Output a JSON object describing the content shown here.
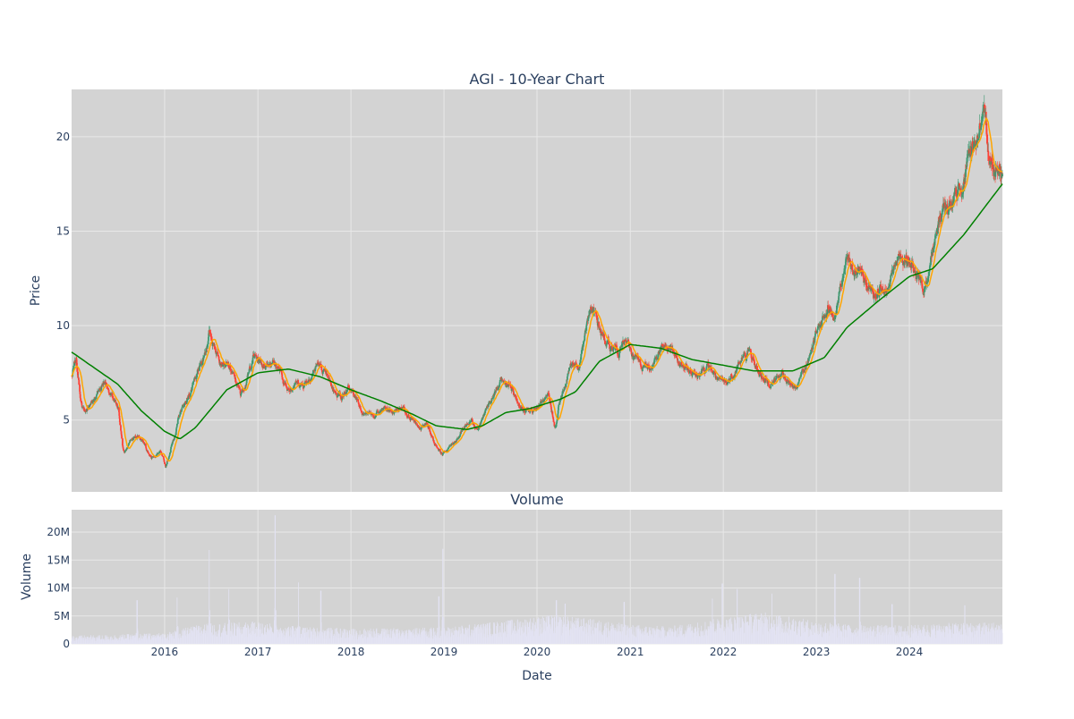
{
  "chart_data": [
    {
      "type": "candlestick",
      "title": "AGI - 10-Year Chart",
      "xlabel": "",
      "ylabel": "Price",
      "x_range": [
        "2015-01-01",
        "2024-12-31"
      ],
      "ylim": [
        1.2,
        22.5
      ],
      "y_ticks": [
        5,
        10,
        15,
        20
      ],
      "grid": true,
      "legend": "none",
      "price_anchors": [
        [
          "2015-01-01",
          7.3
        ],
        [
          "2015-01-20",
          8.2
        ],
        [
          "2015-02-05",
          6.1
        ],
        [
          "2015-02-20",
          5.4
        ],
        [
          "2015-03-15",
          5.8
        ],
        [
          "2015-04-15",
          6.5
        ],
        [
          "2015-05-10",
          7.1
        ],
        [
          "2015-06-10",
          6.2
        ],
        [
          "2015-07-05",
          5.4
        ],
        [
          "2015-07-25",
          3.2
        ],
        [
          "2015-08-20",
          3.9
        ],
        [
          "2015-09-20",
          4.2
        ],
        [
          "2015-10-15",
          3.8
        ],
        [
          "2015-11-10",
          3.0
        ],
        [
          "2015-12-15",
          3.3
        ],
        [
          "2016-01-05",
          2.5
        ],
        [
          "2016-02-05",
          4.0
        ],
        [
          "2016-03-05",
          5.5
        ],
        [
          "2016-04-05",
          6.3
        ],
        [
          "2016-05-05",
          7.2
        ],
        [
          "2016-06-05",
          8.5
        ],
        [
          "2016-06-25",
          9.6
        ],
        [
          "2016-07-25",
          8.6
        ],
        [
          "2016-08-25",
          8.0
        ],
        [
          "2016-09-25",
          7.4
        ],
        [
          "2016-10-25",
          6.4
        ],
        [
          "2016-11-25",
          7.4
        ],
        [
          "2016-12-15",
          8.4
        ],
        [
          "2017-01-25",
          7.9
        ],
        [
          "2017-02-25",
          8.2
        ],
        [
          "2017-03-25",
          7.7
        ],
        [
          "2017-04-25",
          6.6
        ],
        [
          "2017-05-25",
          7.0
        ],
        [
          "2017-06-25",
          6.9
        ],
        [
          "2017-07-25",
          7.3
        ],
        [
          "2017-08-25",
          8.0
        ],
        [
          "2017-09-25",
          7.3
        ],
        [
          "2017-10-25",
          6.6
        ],
        [
          "2017-11-25",
          6.3
        ],
        [
          "2017-12-25",
          6.6
        ],
        [
          "2018-01-25",
          6.1
        ],
        [
          "2018-02-20",
          5.4
        ],
        [
          "2018-04-05",
          5.2
        ],
        [
          "2018-05-15",
          5.6
        ],
        [
          "2018-06-15",
          5.4
        ],
        [
          "2018-07-25",
          5.7
        ],
        [
          "2018-08-25",
          5.2
        ],
        [
          "2018-09-25",
          4.4
        ],
        [
          "2018-10-25",
          4.8
        ],
        [
          "2018-11-25",
          3.8
        ],
        [
          "2018-12-25",
          3.2
        ],
        [
          "2019-01-25",
          3.6
        ],
        [
          "2019-02-25",
          4.1
        ],
        [
          "2019-03-25",
          4.7
        ],
        [
          "2019-04-20",
          5.0
        ],
        [
          "2019-05-15",
          4.6
        ],
        [
          "2019-06-15",
          5.5
        ],
        [
          "2019-07-15",
          6.3
        ],
        [
          "2019-08-15",
          7.0
        ],
        [
          "2019-09-15",
          6.8
        ],
        [
          "2019-10-15",
          6.0
        ],
        [
          "2019-11-15",
          5.4
        ],
        [
          "2019-12-15",
          5.5
        ],
        [
          "2020-01-15",
          5.9
        ],
        [
          "2020-02-15",
          6.1
        ],
        [
          "2020-03-15",
          4.5
        ],
        [
          "2020-03-25",
          5.6
        ],
        [
          "2020-04-15",
          6.6
        ],
        [
          "2020-05-15",
          8.0
        ],
        [
          "2020-06-15",
          7.9
        ],
        [
          "2020-07-05",
          9.5
        ],
        [
          "2020-07-25",
          10.8
        ],
        [
          "2020-08-15",
          10.5
        ],
        [
          "2020-09-15",
          9.4
        ],
        [
          "2020-10-15",
          8.8
        ],
        [
          "2020-11-15",
          8.7
        ],
        [
          "2020-12-15",
          9.1
        ],
        [
          "2021-01-15",
          8.4
        ],
        [
          "2021-02-15",
          7.9
        ],
        [
          "2021-03-15",
          7.9
        ],
        [
          "2021-04-15",
          8.4
        ],
        [
          "2021-05-15",
          9.0
        ],
        [
          "2021-06-10",
          8.7
        ],
        [
          "2021-07-15",
          7.9
        ],
        [
          "2021-08-15",
          7.6
        ],
        [
          "2021-09-15",
          7.4
        ],
        [
          "2021-10-15",
          7.8
        ],
        [
          "2021-11-15",
          7.7
        ],
        [
          "2021-12-15",
          7.0
        ],
        [
          "2022-01-15",
          6.9
        ],
        [
          "2022-02-15",
          7.6
        ],
        [
          "2022-03-15",
          8.2
        ],
        [
          "2022-04-15",
          8.6
        ],
        [
          "2022-05-15",
          7.6
        ],
        [
          "2022-06-15",
          7.1
        ],
        [
          "2022-07-15",
          7.0
        ],
        [
          "2022-08-15",
          7.4
        ],
        [
          "2022-09-15",
          7.1
        ],
        [
          "2022-10-10",
          6.8
        ],
        [
          "2022-11-15",
          7.6
        ],
        [
          "2022-12-15",
          9.0
        ],
        [
          "2023-01-15",
          10.0
        ],
        [
          "2023-02-15",
          11.0
        ],
        [
          "2023-03-15",
          10.4
        ],
        [
          "2023-04-15",
          12.4
        ],
        [
          "2023-05-05",
          13.5
        ],
        [
          "2023-06-15",
          12.6
        ],
        [
          "2023-07-15",
          12.2
        ],
        [
          "2023-08-15",
          11.6
        ],
        [
          "2023-09-15",
          12.0
        ],
        [
          "2023-10-15",
          12.4
        ],
        [
          "2023-11-15",
          13.5
        ],
        [
          "2023-12-15",
          13.8
        ],
        [
          "2024-01-15",
          13.0
        ],
        [
          "2024-02-15",
          12.1
        ],
        [
          "2024-03-01",
          11.9
        ],
        [
          "2024-03-20",
          13.2
        ],
        [
          "2024-04-15",
          15.0
        ],
        [
          "2024-05-15",
          16.2
        ],
        [
          "2024-06-15",
          16.4
        ],
        [
          "2024-07-15",
          17.2
        ],
        [
          "2024-08-15",
          18.4
        ],
        [
          "2024-09-10",
          19.6
        ],
        [
          "2024-10-01",
          20.4
        ],
        [
          "2024-10-20",
          20.6
        ],
        [
          "2024-11-10",
          19.2
        ],
        [
          "2024-11-25",
          18.3
        ],
        [
          "2024-12-15",
          18.7
        ],
        [
          "2024-12-31",
          18.2
        ]
      ],
      "ma_long_anchors": [
        [
          "2015-01-01",
          8.6
        ],
        [
          "2015-07-01",
          6.9
        ],
        [
          "2015-10-01",
          5.5
        ],
        [
          "2016-01-01",
          4.4
        ],
        [
          "2016-03-01",
          4.0
        ],
        [
          "2016-05-01",
          4.6
        ],
        [
          "2016-09-01",
          6.6
        ],
        [
          "2017-01-01",
          7.5
        ],
        [
          "2017-05-01",
          7.7
        ],
        [
          "2017-09-01",
          7.3
        ],
        [
          "2018-01-01",
          6.6
        ],
        [
          "2018-05-01",
          6.0
        ],
        [
          "2018-09-01",
          5.3
        ],
        [
          "2018-12-01",
          4.7
        ],
        [
          "2019-04-01",
          4.5
        ],
        [
          "2019-06-01",
          4.7
        ],
        [
          "2019-09-01",
          5.4
        ],
        [
          "2019-12-01",
          5.6
        ],
        [
          "2020-04-01",
          6.1
        ],
        [
          "2020-06-01",
          6.5
        ],
        [
          "2020-09-01",
          8.1
        ],
        [
          "2021-01-01",
          9.0
        ],
        [
          "2021-05-01",
          8.8
        ],
        [
          "2021-09-01",
          8.2
        ],
        [
          "2022-01-01",
          7.9
        ],
        [
          "2022-05-01",
          7.6
        ],
        [
          "2022-10-01",
          7.6
        ],
        [
          "2023-02-01",
          8.3
        ],
        [
          "2023-05-01",
          9.9
        ],
        [
          "2023-09-01",
          11.3
        ],
        [
          "2024-01-01",
          12.6
        ],
        [
          "2024-04-01",
          13.0
        ],
        [
          "2024-08-01",
          14.8
        ],
        [
          "2024-12-31",
          17.5
        ]
      ],
      "colors": {
        "up": "#3d9970",
        "down": "#ff4136",
        "ma_short": "#ffa500",
        "ma_long": "#008000",
        "plot_bg": "#d3d3d3",
        "grid": "#e8e8e8"
      }
    },
    {
      "type": "bar",
      "title": "Volume",
      "xlabel": "Date",
      "ylabel": "Volume",
      "ylim": [
        0,
        24000000
      ],
      "y_ticks": [
        {
          "value": 0,
          "label": "0"
        },
        {
          "value": 5000000,
          "label": "5M"
        },
        {
          "value": 10000000,
          "label": "10M"
        },
        {
          "value": 15000000,
          "label": "15M"
        },
        {
          "value": 20000000,
          "label": "20M"
        }
      ],
      "x_ticks": [
        "2016",
        "2017",
        "2018",
        "2019",
        "2020",
        "2021",
        "2022",
        "2023",
        "2024"
      ],
      "base_volume_anchors": [
        [
          "2015-01-01",
          1200000
        ],
        [
          "2015-06-01",
          1300000
        ],
        [
          "2016-01-01",
          1600000
        ],
        [
          "2016-06-01",
          2900000
        ],
        [
          "2017-01-01",
          3200000
        ],
        [
          "2017-06-01",
          2500000
        ],
        [
          "2018-01-01",
          2200000
        ],
        [
          "2019-01-01",
          2400000
        ],
        [
          "2019-06-01",
          3000000
        ],
        [
          "2020-03-01",
          4200000
        ],
        [
          "2020-08-01",
          3600000
        ],
        [
          "2021-01-01",
          2800000
        ],
        [
          "2021-06-01",
          2500000
        ],
        [
          "2022-01-01",
          3800000
        ],
        [
          "2022-06-01",
          4600000
        ],
        [
          "2023-01-01",
          3300000
        ],
        [
          "2023-06-01",
          2700000
        ],
        [
          "2024-01-01",
          2700000
        ],
        [
          "2024-06-01",
          3000000
        ],
        [
          "2024-12-31",
          3200000
        ]
      ],
      "volume_spikes": [
        [
          "2015-09-15",
          7800000
        ],
        [
          "2016-02-20",
          8300000
        ],
        [
          "2016-06-25",
          16800000
        ],
        [
          "2016-09-10",
          9800000
        ],
        [
          "2017-03-10",
          23000000
        ],
        [
          "2017-06-10",
          11000000
        ],
        [
          "2017-09-05",
          9500000
        ],
        [
          "2018-12-12",
          8500000
        ],
        [
          "2018-12-28",
          17000000
        ],
        [
          "2020-03-17",
          7800000
        ],
        [
          "2020-04-20",
          7200000
        ],
        [
          "2020-12-08",
          7500000
        ],
        [
          "2021-11-20",
          8100000
        ],
        [
          "2021-12-28",
          10800000
        ],
        [
          "2022-02-25",
          9800000
        ],
        [
          "2022-07-10",
          9000000
        ],
        [
          "2023-03-15",
          12500000
        ],
        [
          "2023-06-20",
          11800000
        ],
        [
          "2023-10-25",
          7100000
        ],
        [
          "2024-08-05",
          6900000
        ]
      ],
      "colors": {
        "bar": "#e3e3f3",
        "plot_bg": "#d3d3d3",
        "grid": "#e8e8e8"
      }
    }
  ]
}
